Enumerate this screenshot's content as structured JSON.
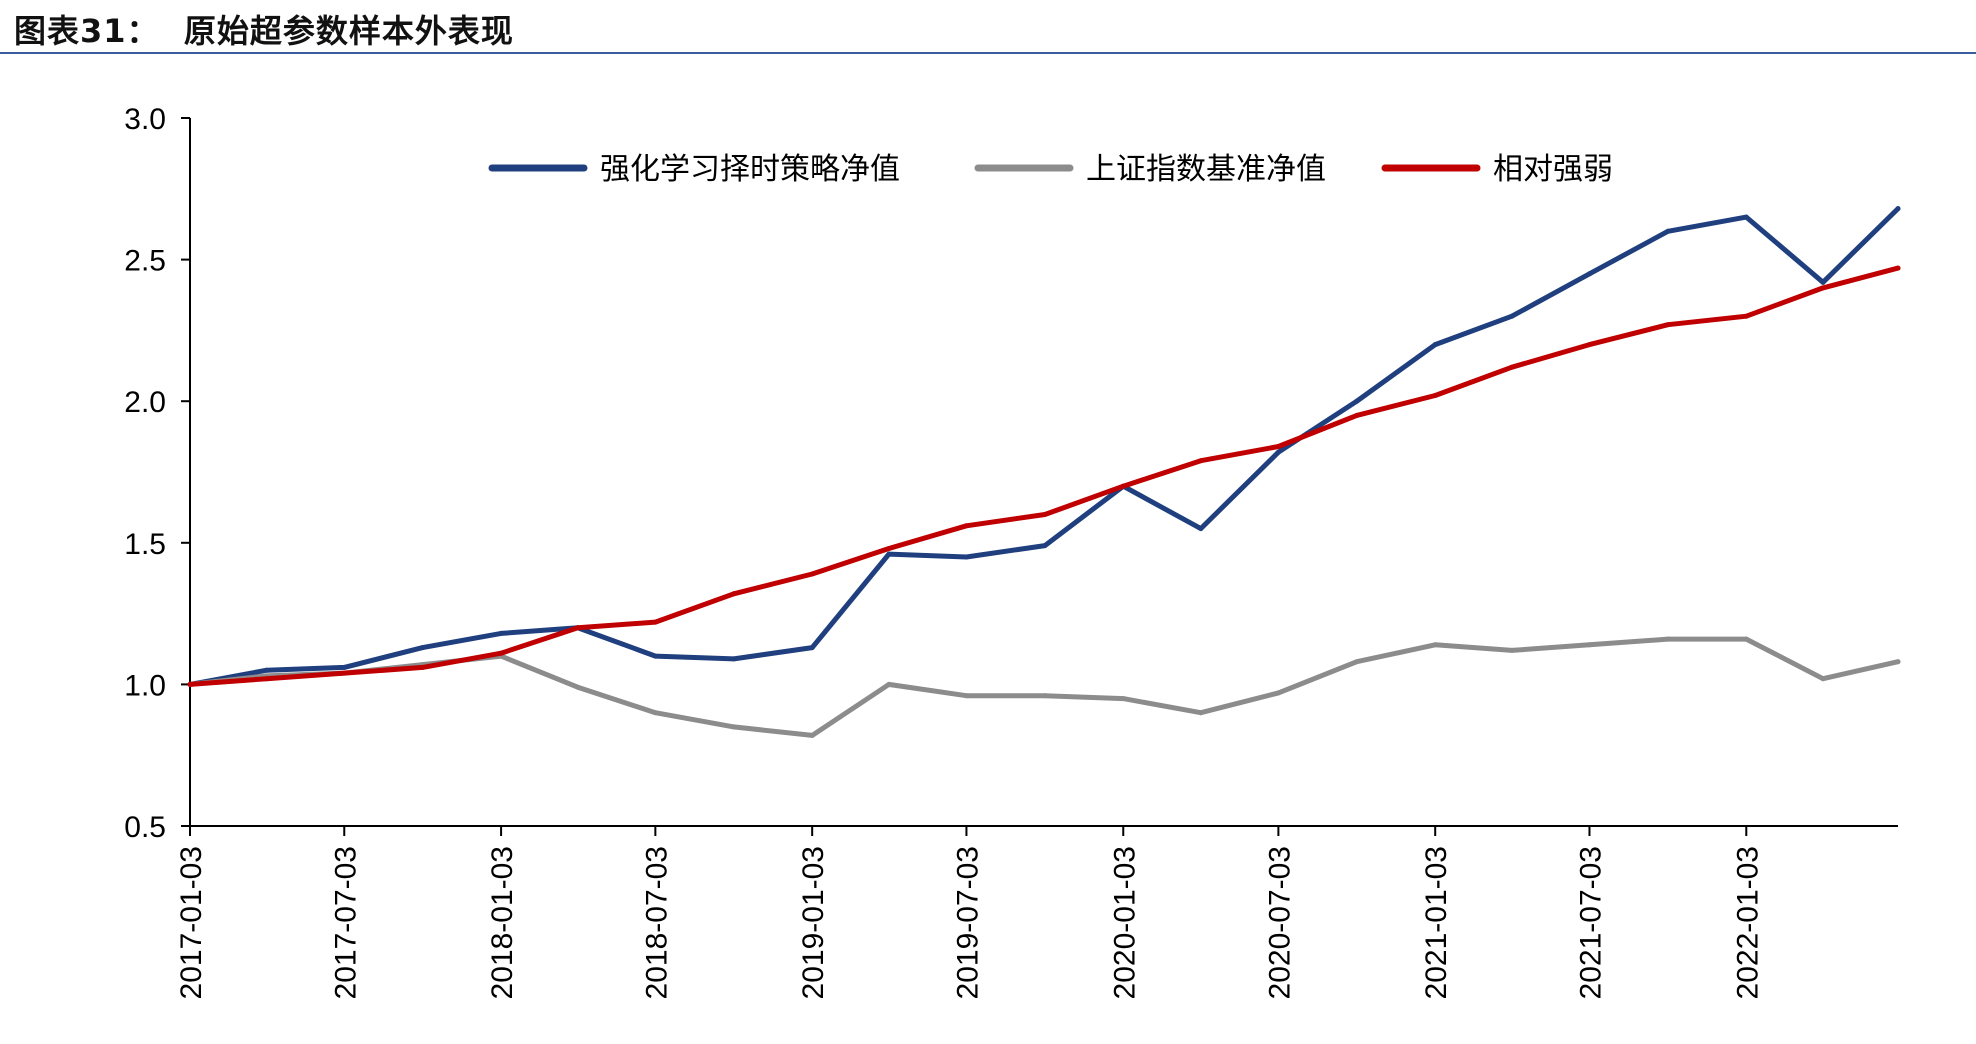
{
  "title": "图表31：  原始超参数样本外表现",
  "chart_data": {
    "type": "line",
    "title": "",
    "xlabel": "",
    "ylabel": "",
    "ylim": [
      0.5,
      3.0
    ],
    "yticks": [
      "0.5",
      "1.0",
      "1.5",
      "2.0",
      "2.5",
      "3.0"
    ],
    "ytick_values": [
      0.5,
      1.0,
      1.5,
      2.0,
      2.5,
      3.0
    ],
    "xticks": [
      "2017-01-03",
      "2017-07-03",
      "2018-01-03",
      "2018-07-03",
      "2019-01-03",
      "2019-07-03",
      "2020-01-03",
      "2020-07-03",
      "2021-01-03",
      "2021-07-03",
      "2022-01-03"
    ],
    "xlim": [
      "2017-01-03",
      "2022-06-30"
    ],
    "grid": false,
    "legend_position": "top",
    "x": [
      "2017-01-03",
      "2017-04-03",
      "2017-07-03",
      "2017-10-03",
      "2018-01-03",
      "2018-04-03",
      "2018-07-03",
      "2018-10-03",
      "2019-01-03",
      "2019-04-03",
      "2019-07-03",
      "2019-10-03",
      "2020-01-03",
      "2020-04-03",
      "2020-07-03",
      "2020-10-03",
      "2021-01-03",
      "2021-04-03",
      "2021-07-03",
      "2021-10-03",
      "2022-01-03",
      "2022-04-03",
      "2022-06-30"
    ],
    "series": [
      {
        "name": "强化学习择时策略净值",
        "color": "#1f3f7f",
        "values": [
          1.0,
          1.05,
          1.06,
          1.13,
          1.18,
          1.2,
          1.1,
          1.09,
          1.13,
          1.46,
          1.45,
          1.49,
          1.7,
          1.55,
          1.82,
          2.0,
          2.2,
          2.3,
          2.45,
          2.6,
          2.65,
          2.42,
          2.68
        ]
      },
      {
        "name": "上证指数基准净值",
        "color": "#8c8c8c",
        "values": [
          1.0,
          1.03,
          1.04,
          1.07,
          1.1,
          0.99,
          0.9,
          0.85,
          0.82,
          1.0,
          0.96,
          0.96,
          0.95,
          0.9,
          0.97,
          1.08,
          1.14,
          1.12,
          1.14,
          1.16,
          1.16,
          1.02,
          1.08
        ]
      },
      {
        "name": "相对强弱",
        "color": "#c00000",
        "values": [
          1.0,
          1.02,
          1.04,
          1.06,
          1.11,
          1.2,
          1.22,
          1.32,
          1.39,
          1.48,
          1.56,
          1.6,
          1.7,
          1.79,
          1.84,
          1.95,
          2.02,
          2.12,
          2.2,
          2.27,
          2.3,
          2.4,
          2.47
        ]
      }
    ]
  }
}
